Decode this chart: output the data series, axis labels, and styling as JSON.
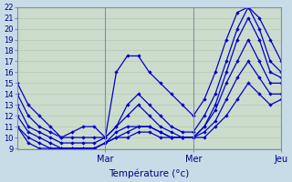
{
  "xlabel": "Température (°c)",
  "bg_color": "#c8dce8",
  "plot_bg_color": "#ccdccc",
  "line_color": "#0000cc",
  "xlim": [
    0,
    72
  ],
  "ylim": [
    9,
    22
  ],
  "yticks": [
    9,
    10,
    11,
    12,
    13,
    14,
    15,
    16,
    17,
    18,
    19,
    20,
    21,
    22
  ],
  "xtick_positions": [
    24,
    48,
    72
  ],
  "xtick_labels": [
    "Mar",
    "Mer",
    "Jeu"
  ],
  "series": [
    [
      0,
      15,
      3,
      13,
      6,
      12,
      9,
      11,
      12,
      10,
      15,
      10.5,
      18,
      11,
      21,
      11,
      24,
      10,
      27,
      16,
      30,
      17.5,
      33,
      17.5,
      36,
      16,
      39,
      15,
      42,
      14,
      45,
      13,
      48,
      12,
      51,
      13.5,
      54,
      16,
      57,
      19,
      60,
      21.5,
      63,
      22,
      66,
      21,
      69,
      19,
      72,
      17
    ],
    [
      0,
      14,
      3,
      12,
      6,
      11,
      9,
      10.5,
      12,
      10,
      15,
      10,
      18,
      10,
      21,
      10,
      24,
      10,
      27,
      11,
      30,
      13,
      33,
      14,
      36,
      13,
      39,
      12,
      42,
      11,
      45,
      10.5,
      48,
      10.5,
      51,
      12,
      54,
      14,
      57,
      17,
      60,
      20,
      63,
      22,
      66,
      20,
      69,
      17,
      72,
      16
    ],
    [
      0,
      13,
      3,
      11,
      6,
      10.5,
      9,
      10,
      12,
      9.5,
      15,
      9.5,
      18,
      9.5,
      21,
      9.5,
      24,
      10,
      27,
      11,
      30,
      12,
      33,
      13,
      36,
      12,
      39,
      11,
      42,
      10.5,
      45,
      10,
      48,
      10,
      51,
      11,
      54,
      13,
      57,
      16,
      60,
      19,
      63,
      21,
      66,
      19,
      69,
      16,
      72,
      15.5
    ],
    [
      0,
      12,
      3,
      10.5,
      6,
      10,
      9,
      9.5,
      12,
      9,
      15,
      9,
      18,
      9,
      21,
      9,
      24,
      9.5,
      27,
      10.5,
      30,
      11,
      33,
      11,
      36,
      11,
      39,
      10.5,
      42,
      10,
      45,
      10,
      48,
      10,
      51,
      11,
      54,
      12.5,
      57,
      15,
      60,
      17,
      63,
      19,
      66,
      17,
      69,
      15,
      72,
      15
    ],
    [
      0,
      11,
      3,
      10,
      6,
      9.5,
      9,
      9,
      12,
      9,
      15,
      9,
      18,
      9,
      21,
      9,
      24,
      9.5,
      27,
      10,
      30,
      10.5,
      33,
      11,
      36,
      11,
      39,
      10.5,
      42,
      10,
      45,
      10,
      48,
      10,
      51,
      10.5,
      54,
      11.5,
      57,
      13.5,
      60,
      15.5,
      63,
      17,
      66,
      15.5,
      69,
      14,
      72,
      14
    ],
    [
      0,
      11,
      3,
      9.5,
      6,
      9,
      9,
      9,
      12,
      9,
      15,
      9,
      18,
      9,
      21,
      9,
      24,
      9.5,
      27,
      10,
      30,
      10,
      33,
      10.5,
      36,
      10.5,
      39,
      10,
      42,
      10,
      45,
      10,
      48,
      10,
      51,
      10,
      54,
      11,
      57,
      12,
      60,
      13.5,
      63,
      15,
      66,
      14,
      69,
      13,
      72,
      13.5
    ]
  ]
}
